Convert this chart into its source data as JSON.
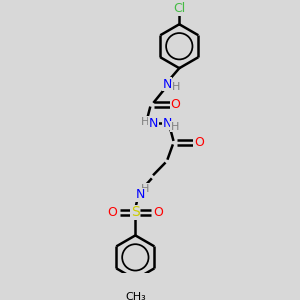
{
  "bg_color": "#d8d8d8",
  "bond_color": "#000000",
  "N_color": "#0000ff",
  "O_color": "#ff0000",
  "S_color": "#cccc00",
  "Cl_color": "#44bb44",
  "H_color": "#808080",
  "C_color": "#000000",
  "lw": 1.8,
  "figsize": [
    3.0,
    3.0
  ],
  "dpi": 100,
  "xlim": [
    -4.5,
    4.5
  ],
  "ylim": [
    -5.5,
    5.5
  ]
}
